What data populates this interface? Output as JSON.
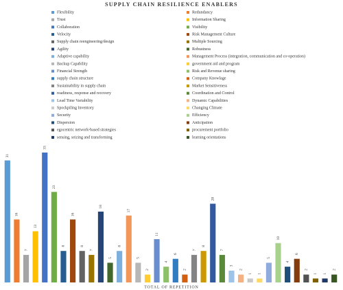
{
  "chart_data": {
    "type": "bar",
    "title": "SUPPLY CHAIN RESILIENCE ENABLERS",
    "x_label": "TOTAL OF REPETITION",
    "categories": [
      "Flexibility",
      "Redundancy",
      "Trust",
      "Information Sharing",
      "Collaboration",
      "Visibility",
      "Velocity",
      "Risk Management Culture",
      "Supply chain reengineering/design",
      "Multiple Sourcing",
      "Agility",
      "Robustness",
      "Adaptive capability",
      "Management Process (integration, communication and co-operation)",
      "Backup Capability",
      "government aid and program",
      "Financial Strength",
      "Risk and Revenue sharing",
      "supply chain structure",
      "Company Knowlage",
      "Sustainability in supply chain",
      "Market Sensitiveness",
      "readiness, response and recovery",
      "Coordination and Control",
      "Lead Time Variability",
      "Dynamic Capabilities",
      "Spockpiling Inventory",
      "Changing Climate",
      "Security",
      "Efficiency",
      "Dispersion",
      "Anticipation",
      "egocentric network-based strategies",
      "procurement portfolio",
      "sensing, seizing and transforming",
      "learning orientations"
    ],
    "values": [
      31,
      16,
      7,
      13,
      33,
      23,
      8,
      16,
      8,
      7,
      18,
      5,
      8,
      17,
      5,
      2,
      11,
      4,
      6,
      2,
      7,
      8,
      20,
      7,
      3,
      2,
      1,
      1,
      5,
      10,
      4,
      6,
      2,
      1,
      1,
      2
    ],
    "colors": [
      "#5b9bd5",
      "#ed7d31",
      "#a5a5a5",
      "#ffc000",
      "#4472c4",
      "#70ad47",
      "#255e91",
      "#9e480e",
      "#636363",
      "#997300",
      "#264478",
      "#43682b",
      "#7cafdd",
      "#f1975a",
      "#b7b7b7",
      "#ffcd33",
      "#698ed0",
      "#8cc168",
      "#327dc2",
      "#d26012",
      "#848484",
      "#cc9a00",
      "#335aa1",
      "#5a8a39",
      "#9dc3e6",
      "#f4b183",
      "#c9c9c9",
      "#ffd966",
      "#8faadc",
      "#a9d18e",
      "#1f4e79",
      "#843c0c",
      "#525252",
      "#7f6000",
      "#203864",
      "#375623"
    ]
  }
}
